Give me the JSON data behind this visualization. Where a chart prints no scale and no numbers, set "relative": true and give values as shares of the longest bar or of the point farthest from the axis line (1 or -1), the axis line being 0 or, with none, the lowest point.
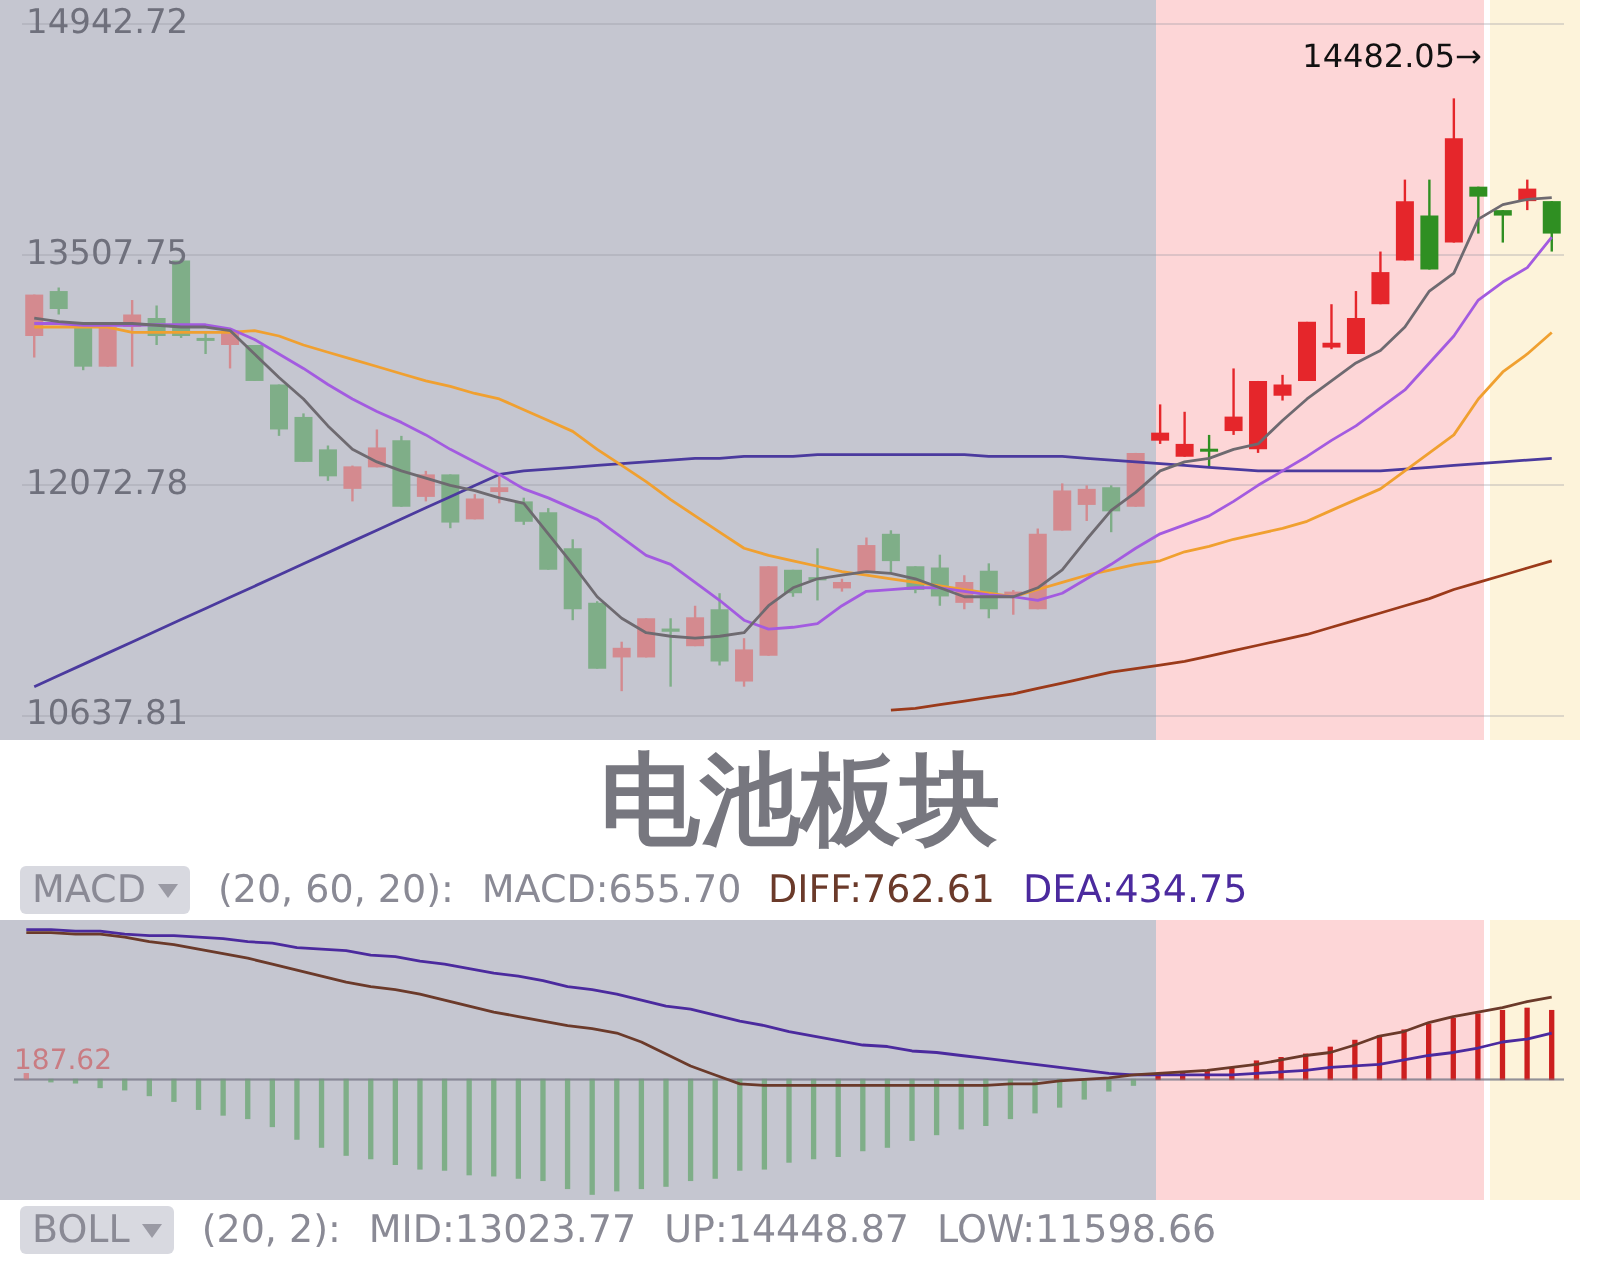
{
  "chart_data": [
    {
      "type": "candlestick",
      "title": "电池板块",
      "grid": "y",
      "tick_labels": "y",
      "marker": "none",
      "categories": [
        null,
        null,
        null,
        null,
        null,
        null,
        null,
        null,
        null,
        null,
        null,
        null,
        null,
        null,
        null,
        null,
        null,
        null,
        null,
        null,
        null,
        null,
        null,
        null,
        null,
        null,
        null,
        null,
        null,
        null,
        null,
        null,
        null,
        null,
        null,
        null,
        null,
        null,
        null,
        null,
        null,
        null,
        null,
        null,
        null,
        null,
        null,
        null,
        null,
        null,
        null,
        null,
        null,
        null,
        null,
        null,
        null,
        null,
        null,
        null,
        null,
        null,
        null
      ],
      "ylim": [
        10637.81,
        14942.72
      ],
      "yticks": [
        14942.72,
        13507.75,
        12072.78,
        10637.81
      ],
      "ohlc": [
        [
          13002,
          13260,
          12868,
          13260
        ],
        [
          13282,
          13304,
          13136,
          13170
        ],
        [
          13058,
          13080,
          12789,
          12811
        ],
        [
          12811,
          13058,
          12811,
          13058
        ],
        [
          13058,
          13226,
          12811,
          13136
        ],
        [
          13114,
          13192,
          12946,
          13002
        ],
        [
          13472,
          13483,
          12990,
          13002
        ],
        [
          12990,
          13024,
          12890,
          12980
        ],
        [
          12946,
          13036,
          12800,
          13036
        ],
        [
          12946,
          12946,
          12722,
          12722
        ],
        [
          12700,
          12700,
          12380,
          12420
        ],
        [
          12498,
          12520,
          12218,
          12218
        ],
        [
          12296,
          12320,
          12100,
          12128
        ],
        [
          12050,
          12195,
          11972,
          12190
        ],
        [
          12184,
          12420,
          12184,
          12308
        ],
        [
          12352,
          12380,
          11938,
          11938
        ],
        [
          12000,
          12162,
          11972,
          12140
        ],
        [
          12140,
          12140,
          11805,
          11840
        ],
        [
          11860,
          12017,
          11860,
          11990
        ],
        [
          12030,
          12128,
          11960,
          12060
        ],
        [
          11972,
          11995,
          11826,
          11845
        ],
        [
          11905,
          11930,
          11546,
          11546
        ],
        [
          11680,
          11736,
          11232,
          11300
        ],
        [
          11340,
          11350,
          10930,
          10930
        ],
        [
          11000,
          11098,
          10790,
          11060
        ],
        [
          11000,
          11244,
          11000,
          11244
        ],
        [
          11180,
          11244,
          10818,
          11160
        ],
        [
          11070,
          11322,
          11070,
          11250
        ],
        [
          11300,
          11400,
          10950,
          10975
        ],
        [
          10850,
          11120,
          10818,
          11050
        ],
        [
          11010,
          11568,
          11010,
          11568
        ],
        [
          11546,
          11546,
          11378,
          11400
        ],
        [
          11500,
          11680,
          11355,
          11480
        ],
        [
          11430,
          11490,
          11410,
          11470
        ],
        [
          11530,
          11747,
          11530,
          11700
        ],
        [
          11770,
          11792,
          11530,
          11600
        ],
        [
          11568,
          11568,
          11400,
          11420
        ],
        [
          11560,
          11640,
          11322,
          11380
        ],
        [
          11340,
          11512,
          11300,
          11470
        ],
        [
          11540,
          11586,
          11244,
          11300
        ],
        [
          11390,
          11420,
          11266,
          11410
        ],
        [
          11300,
          11803,
          11300,
          11770
        ],
        [
          11790,
          12084,
          11790,
          12040
        ],
        [
          11950,
          12072,
          11850,
          12050
        ],
        [
          12060,
          12072,
          11780,
          11910
        ],
        [
          11938,
          12274,
          11938,
          12274
        ],
        [
          12350,
          12576,
          12330,
          12400
        ],
        [
          12250,
          12530,
          12250,
          12330
        ],
        [
          12300,
          12386,
          12184,
          12290
        ],
        [
          12410,
          12800,
          12386,
          12500
        ],
        [
          12296,
          12722,
          12274,
          12722
        ],
        [
          12630,
          12760,
          12600,
          12700
        ],
        [
          12722,
          13090,
          12722,
          13090
        ],
        [
          12930,
          13200,
          12920,
          12960
        ],
        [
          12890,
          13282,
          12890,
          13114
        ],
        [
          13200,
          13528,
          13200,
          13400
        ],
        [
          13472,
          13976,
          13472,
          13842
        ],
        [
          13752,
          13976,
          13416,
          13416
        ],
        [
          13584,
          14482.05,
          13584,
          14234
        ],
        [
          13932,
          13932,
          13640,
          13870
        ],
        [
          13786,
          13786,
          13584,
          13752
        ],
        [
          13842,
          13976,
          13786,
          13920
        ],
        [
          13842,
          13842,
          13528,
          13640
        ]
      ],
      "colors": [
        "#d48a8f",
        "#7fae88",
        "#7fae88",
        "#d48a8f",
        "#d48a8f",
        "#7fae88",
        "#7fae88",
        "#7fae88",
        "#d48a8f",
        "#7fae88",
        "#7fae88",
        "#7fae88",
        "#7fae88",
        "#d48a8f",
        "#d48a8f",
        "#7fae88",
        "#d48a8f",
        "#7fae88",
        "#d48a8f",
        "#d48a8f",
        "#7fae88",
        "#7fae88",
        "#7fae88",
        "#7fae88",
        "#d48a8f",
        "#d48a8f",
        "#7fae88",
        "#d48a8f",
        "#7fae88",
        "#d48a8f",
        "#d48a8f",
        "#7fae88",
        "#7fae88",
        "#d48a8f",
        "#d48a8f",
        "#7fae88",
        "#7fae88",
        "#7fae88",
        "#d48a8f",
        "#7fae88",
        "#d48a8f",
        "#d48a8f",
        "#d48a8f",
        "#d48a8f",
        "#7fae88",
        "#d48a8f",
        "#e5262b",
        "#e5262b",
        "#2f8f22",
        "#e5262b",
        "#e5262b",
        "#e5262b",
        "#e5262b",
        "#e5262b",
        "#e5262b",
        "#e5262b",
        "#e5262b",
        "#2f8f22",
        "#e5262b",
        "#2f8f22",
        "#2f8f22",
        "#e5262b",
        "#2f8f22"
      ],
      "series": [
        {
          "type": "line",
          "color": "#6e6a70",
          "values": [
            13114,
            13092,
            13080,
            13080,
            13080,
            13069,
            13058,
            13058,
            13036,
            12890,
            12744,
            12610,
            12442,
            12296,
            12218,
            12162,
            12117,
            12072,
            12039,
            11994,
            11960,
            11770,
            11580,
            11378,
            11244,
            11154,
            11132,
            11120,
            11132,
            11154,
            11322,
            11434,
            11490,
            11512,
            11535,
            11524,
            11490,
            11434,
            11378,
            11378,
            11378,
            11434,
            11546,
            11736,
            11916,
            12028,
            12162,
            12218,
            12240,
            12296,
            12330,
            12476,
            12610,
            12722,
            12834,
            12912,
            13058,
            13282,
            13394,
            13730,
            13820,
            13853,
            13864
          ]
        },
        {
          "type": "line",
          "color": "#a35be0",
          "values": [
            13080,
            13080,
            13069,
            13069,
            13069,
            13072,
            13072,
            13072,
            13047,
            12980,
            12890,
            12800,
            12700,
            12610,
            12532,
            12464,
            12386,
            12296,
            12218,
            12140,
            12050,
            11994,
            11927,
            11860,
            11748,
            11636,
            11580,
            11468,
            11356,
            11232,
            11176,
            11188,
            11210,
            11322,
            11412,
            11423,
            11434,
            11434,
            11412,
            11389,
            11378,
            11356,
            11400,
            11490,
            11580,
            11680,
            11770,
            11826,
            11882,
            11972,
            12072,
            12162,
            12252,
            12352,
            12442,
            12554,
            12666,
            12834,
            13002,
            13226,
            13338,
            13428,
            13618
          ]
        },
        {
          "type": "line",
          "color": "#f0a030",
          "values": [
            13058,
            13058,
            13058,
            13058,
            13025,
            13025,
            13025,
            13025,
            13025,
            13036,
            13002,
            12946,
            12901,
            12856,
            12812,
            12767,
            12722,
            12688,
            12644,
            12610,
            12543,
            12476,
            12408,
            12296,
            12196,
            12095,
            11983,
            11882,
            11781,
            11680,
            11636,
            11602,
            11568,
            11535,
            11512,
            11490,
            11468,
            11445,
            11423,
            11400,
            11378,
            11423,
            11468,
            11512,
            11546,
            11580,
            11602,
            11658,
            11692,
            11736,
            11770,
            11804,
            11848,
            11916,
            11983,
            12050,
            12162,
            12274,
            12386,
            12610,
            12778,
            12890,
            13024
          ]
        },
        {
          "type": "line",
          "color": "#4b3a9e",
          "values": [
            10818,
            10888,
            10957,
            11027,
            11096,
            11166,
            11236,
            11305,
            11375,
            11444,
            11514,
            11584,
            11653,
            11723,
            11792,
            11862,
            11932,
            12001,
            12071,
            12140,
            12162,
            12173,
            12184,
            12196,
            12207,
            12218,
            12229,
            12240,
            12240,
            12252,
            12252,
            12252,
            12263,
            12263,
            12263,
            12263,
            12263,
            12263,
            12263,
            12252,
            12252,
            12252,
            12252,
            12240,
            12229,
            12218,
            12207,
            12196,
            12184,
            12173,
            12162,
            12162,
            12162,
            12162,
            12162,
            12162,
            12173,
            12184,
            12196,
            12207,
            12218,
            12229,
            12240
          ]
        },
        {
          "type": "line",
          "color": "#9b3a1a",
          "values": [
            null,
            null,
            null,
            null,
            null,
            null,
            null,
            null,
            null,
            null,
            null,
            null,
            null,
            null,
            null,
            null,
            null,
            null,
            null,
            null,
            null,
            null,
            null,
            null,
            null,
            null,
            null,
            null,
            null,
            null,
            null,
            null,
            null,
            null,
            null,
            10672,
            10683,
            10706,
            10728,
            10751,
            10773,
            10807,
            10840,
            10874,
            10908,
            10930,
            10952,
            10975,
            11008,
            11042,
            11076,
            11110,
            11143,
            11188,
            11232,
            11277,
            11322,
            11366,
            11423,
            11468,
            11512,
            11557,
            11602
          ]
        }
      ],
      "annotations": [
        "14482.05→"
      ]
    },
    {
      "type": "bar",
      "title": "MACD",
      "subtitle": "(20, 60, 20):",
      "relative": true,
      "tick_labels": false,
      "categories": [
        null,
        null,
        null,
        null,
        null,
        null,
        null,
        null,
        null,
        null,
        null,
        null,
        null,
        null,
        null,
        null,
        null,
        null,
        null,
        null,
        null,
        null,
        null,
        null,
        null,
        null,
        null,
        null,
        null,
        null,
        null,
        null,
        null,
        null,
        null,
        null,
        null,
        null,
        null,
        null,
        null,
        null,
        null,
        null,
        null,
        null,
        null,
        null,
        null,
        null,
        null,
        null,
        null,
        null,
        null,
        null,
        null,
        null,
        null,
        null,
        null,
        null,
        null
      ],
      "series": [
        {
          "name": "MACD:655.70",
          "values": [
            0.05,
            -0.02,
            -0.03,
            -0.07,
            -0.09,
            -0.14,
            -0.19,
            -0.26,
            -0.31,
            -0.34,
            -0.41,
            -0.52,
            -0.59,
            -0.66,
            -0.69,
            -0.74,
            -0.78,
            -0.79,
            -0.83,
            -0.84,
            -0.86,
            -0.88,
            -0.95,
            -1,
            -0.97,
            -0.95,
            -0.93,
            -0.88,
            -0.86,
            -0.79,
            -0.78,
            -0.72,
            -0.69,
            -0.67,
            -0.62,
            -0.59,
            -0.53,
            -0.48,
            -0.43,
            -0.4,
            -0.34,
            -0.29,
            -0.24,
            -0.17,
            -0.1,
            -0.05,
            0.03,
            0.05,
            0.07,
            0.1,
            0.16,
            0.19,
            0.22,
            0.28,
            0.34,
            0.38,
            0.43,
            0.48,
            0.53,
            0.57,
            0.6,
            0.62,
            0.6
          ],
          "colors": [
            "#d48a8f",
            "#7fae88",
            "#7fae88",
            "#7fae88",
            "#7fae88",
            "#7fae88",
            "#7fae88",
            "#7fae88",
            "#7fae88",
            "#7fae88",
            "#7fae88",
            "#7fae88",
            "#7fae88",
            "#7fae88",
            "#7fae88",
            "#7fae88",
            "#7fae88",
            "#7fae88",
            "#7fae88",
            "#7fae88",
            "#7fae88",
            "#7fae88",
            "#7fae88",
            "#7fae88",
            "#7fae88",
            "#7fae88",
            "#7fae88",
            "#7fae88",
            "#7fae88",
            "#7fae88",
            "#7fae88",
            "#7fae88",
            "#7fae88",
            "#7fae88",
            "#7fae88",
            "#7fae88",
            "#7fae88",
            "#7fae88",
            "#7fae88",
            "#7fae88",
            "#7fae88",
            "#7fae88",
            "#7fae88",
            "#7fae88",
            "#7fae88",
            "#7fae88",
            "#cc1f1f",
            "#cc1f1f",
            "#cc1f1f",
            "#cc1f1f",
            "#cc1f1f",
            "#cc1f1f",
            "#cc1f1f",
            "#cc1f1f",
            "#cc1f1f",
            "#cc1f1f",
            "#cc1f1f",
            "#cc1f1f",
            "#cc1f1f",
            "#cc1f1f",
            "#cc1f1f",
            "#cc1f1f",
            "#cc1f1f"
          ]
        }
      ],
      "annotations": [
        "187.62"
      ]
    },
    {
      "type": "line",
      "relative": true,
      "tick_labels": false,
      "marker": "none",
      "categories": [
        null,
        null,
        null,
        null,
        null,
        null,
        null,
        null,
        null,
        null,
        null,
        null,
        null,
        null,
        null,
        null,
        null,
        null,
        null,
        null,
        null,
        null,
        null,
        null,
        null,
        null,
        null,
        null,
        null,
        null,
        null,
        null,
        null,
        null,
        null,
        null,
        null,
        null,
        null,
        null,
        null,
        null,
        null,
        null,
        null,
        null,
        null,
        null,
        null,
        null,
        null,
        null,
        null,
        null,
        null,
        null,
        null,
        null,
        null,
        null,
        null,
        null,
        null
      ],
      "series": [
        {
          "name": "DIFF:762.61",
          "color": "#6b3a2a",
          "values": [
            0.98,
            0.98,
            0.97,
            0.97,
            0.95,
            0.92,
            0.9,
            0.87,
            0.84,
            0.81,
            0.77,
            0.73,
            0.69,
            0.65,
            0.62,
            0.6,
            0.57,
            0.53,
            0.49,
            0.45,
            0.42,
            0.39,
            0.36,
            0.34,
            0.31,
            0.25,
            0.17,
            0.09,
            0.03,
            -0.03,
            -0.04,
            -0.04,
            -0.04,
            -0.04,
            -0.04,
            -0.04,
            -0.04,
            -0.04,
            -0.04,
            -0.04,
            -0.03,
            -0.03,
            -0.01,
            0,
            0.01,
            0.03,
            0.04,
            0.05,
            0.06,
            0.08,
            0.1,
            0.13,
            0.16,
            0.18,
            0.23,
            0.29,
            0.32,
            0.38,
            0.42,
            0.45,
            0.48,
            0.52,
            0.55
          ]
        },
        {
          "name": "DEA:434.75",
          "color": "#4b2a9e",
          "values": [
            1,
            1,
            0.99,
            0.99,
            0.97,
            0.96,
            0.96,
            0.95,
            0.94,
            0.92,
            0.91,
            0.88,
            0.87,
            0.86,
            0.83,
            0.82,
            0.79,
            0.77,
            0.74,
            0.71,
            0.69,
            0.66,
            0.62,
            0.6,
            0.57,
            0.53,
            0.49,
            0.47,
            0.43,
            0.39,
            0.36,
            0.32,
            0.29,
            0.26,
            0.23,
            0.22,
            0.19,
            0.18,
            0.16,
            0.14,
            0.12,
            0.1,
            0.08,
            0.06,
            0.04,
            0.03,
            0.03,
            0.03,
            0.03,
            0.03,
            0.04,
            0.05,
            0.06,
            0.08,
            0.09,
            0.1,
            0.13,
            0.16,
            0.18,
            0.21,
            0.25,
            0.27,
            0.31
          ]
        }
      ]
    },
    {
      "type": "other",
      "title": "BOLL",
      "subtitle": "(20, 2):",
      "annotations": [
        "MID:13023.77",
        "UP:14448.87",
        "LOW:11598.66"
      ]
    }
  ]
}
